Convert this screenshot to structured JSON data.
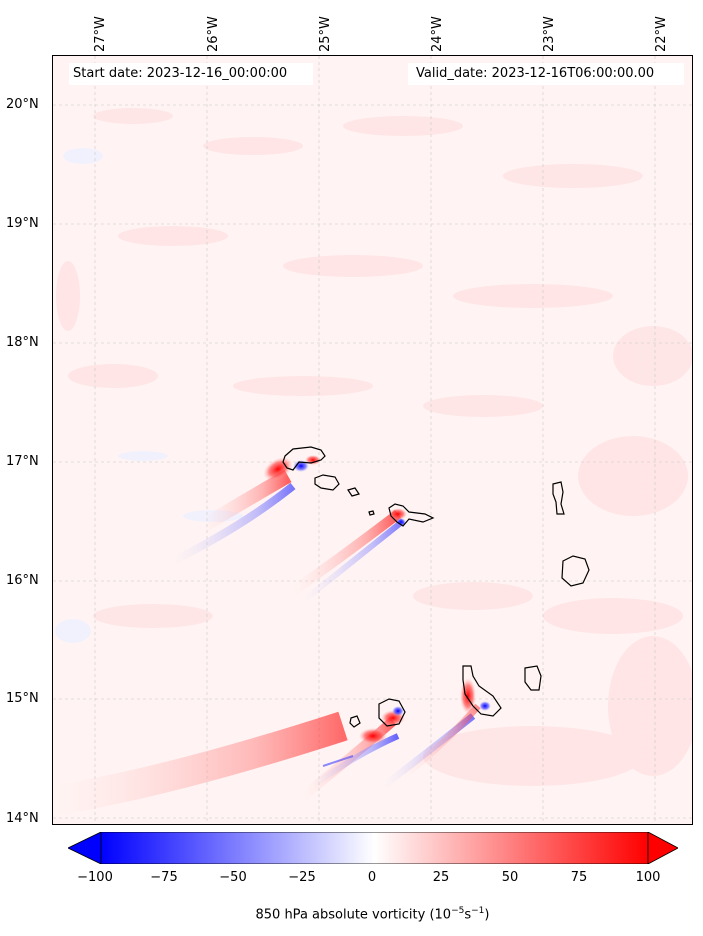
{
  "header": {
    "start_label": "Start date: 2023-12-16_00:00:00",
    "valid_label": "Valid_date: 2023-12-16T06:00:00.00"
  },
  "axes": {
    "lon_ticks": [
      "27°W",
      "26°W",
      "25°W",
      "24°W",
      "23°W",
      "22°W"
    ],
    "lat_ticks": [
      "20°N",
      "19°N",
      "18°N",
      "17°N",
      "16°N",
      "15°N",
      "14°N"
    ]
  },
  "colorbar": {
    "ticks": [
      "−100",
      "−75",
      "−50",
      "−25",
      "0",
      "25",
      "50",
      "75",
      "100"
    ],
    "title": "850 hPa absolute vorticity (10",
    "title_sup1": "−5",
    "title_mid": "s",
    "title_sup2": "−1",
    "title_end": ")",
    "min_color": "#0000ff",
    "mid_color": "#ffffff",
    "max_color": "#ff0000"
  },
  "map": {
    "background_color": "#fff4f3",
    "grid": true,
    "coastline_color": "#000000",
    "features": [
      "santo-antao-island",
      "sao-vicente-island",
      "santa-luzia-island",
      "sao-nicolau-island",
      "sal-island",
      "boa-vista-island",
      "maio-island",
      "santiago-island",
      "fogo-island",
      "brava-island"
    ]
  }
}
